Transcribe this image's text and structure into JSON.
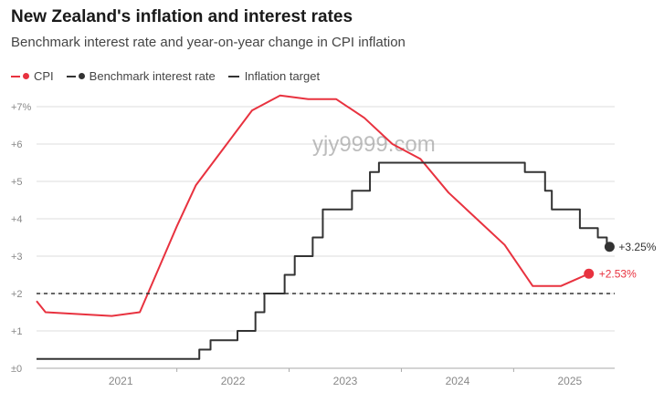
{
  "title": "New Zealand's inflation and interest rates",
  "subtitle": "Benchmark interest rate and year-on-year change in CPI inflation",
  "legend": {
    "cpi": "CPI",
    "rate": "Benchmark interest rate",
    "target": "Inflation target"
  },
  "watermark": "yjy9999.com",
  "colors": {
    "cpi": "#e8323f",
    "rate": "#333333",
    "target": "#333333",
    "grid": "#dddddd"
  },
  "chart_data": {
    "type": "line",
    "title": "New Zealand's inflation and interest rates",
    "subtitle": "Benchmark interest rate and year-on-year change in CPI inflation",
    "xlabel": "",
    "ylabel": "",
    "ylim": [
      0,
      7
    ],
    "xlim": [
      2020.25,
      2025.4
    ],
    "grid": true,
    "legend_position": "top-left",
    "y_ticks": [
      {
        "value": 0,
        "label": "±0"
      },
      {
        "value": 1,
        "label": "+1"
      },
      {
        "value": 2,
        "label": "+2"
      },
      {
        "value": 3,
        "label": "+3"
      },
      {
        "value": 4,
        "label": "+4"
      },
      {
        "value": 5,
        "label": "+5"
      },
      {
        "value": 6,
        "label": "+6"
      },
      {
        "value": 7,
        "label": "+7%"
      }
    ],
    "x_ticks": [
      {
        "value": 2021,
        "label": "2021"
      },
      {
        "value": 2022,
        "label": "2022"
      },
      {
        "value": 2023,
        "label": "2023"
      },
      {
        "value": 2024,
        "label": "2024"
      },
      {
        "value": 2025,
        "label": "2025"
      }
    ],
    "series": [
      {
        "name": "CPI",
        "style": "line",
        "points": [
          [
            2020.25,
            1.8
          ],
          [
            2020.33,
            1.5
          ],
          [
            2020.92,
            1.4
          ],
          [
            2021.17,
            1.5
          ],
          [
            2021.5,
            3.8
          ],
          [
            2021.67,
            4.9
          ],
          [
            2021.92,
            5.9
          ],
          [
            2022.17,
            6.9
          ],
          [
            2022.42,
            7.3
          ],
          [
            2022.67,
            7.2
          ],
          [
            2022.92,
            7.2
          ],
          [
            2023.17,
            6.7
          ],
          [
            2023.42,
            6.0
          ],
          [
            2023.67,
            5.6
          ],
          [
            2023.92,
            4.7
          ],
          [
            2024.17,
            4.0
          ],
          [
            2024.42,
            3.3
          ],
          [
            2024.67,
            2.2
          ],
          [
            2024.92,
            2.2
          ],
          [
            2025.17,
            2.53
          ]
        ],
        "end_label": "+2.53%"
      },
      {
        "name": "Benchmark interest rate",
        "style": "step",
        "points": [
          [
            2020.25,
            0.25
          ],
          [
            2021.7,
            0.5
          ],
          [
            2021.8,
            0.75
          ],
          [
            2022.04,
            1.0
          ],
          [
            2022.2,
            1.5
          ],
          [
            2022.28,
            2.0
          ],
          [
            2022.46,
            2.5
          ],
          [
            2022.55,
            3.0
          ],
          [
            2022.71,
            3.5
          ],
          [
            2022.8,
            4.25
          ],
          [
            2023.06,
            4.75
          ],
          [
            2023.22,
            5.25
          ],
          [
            2023.3,
            5.5
          ],
          [
            2024.6,
            5.25
          ],
          [
            2024.78,
            4.75
          ],
          [
            2024.84,
            4.25
          ],
          [
            2025.09,
            3.75
          ],
          [
            2025.25,
            3.5
          ],
          [
            2025.33,
            3.25
          ]
        ],
        "end_label": "+3.25%"
      },
      {
        "name": "Inflation target",
        "style": "dashed",
        "points": [
          [
            2020.25,
            2.0
          ],
          [
            2025.4,
            2.0
          ]
        ]
      }
    ]
  }
}
